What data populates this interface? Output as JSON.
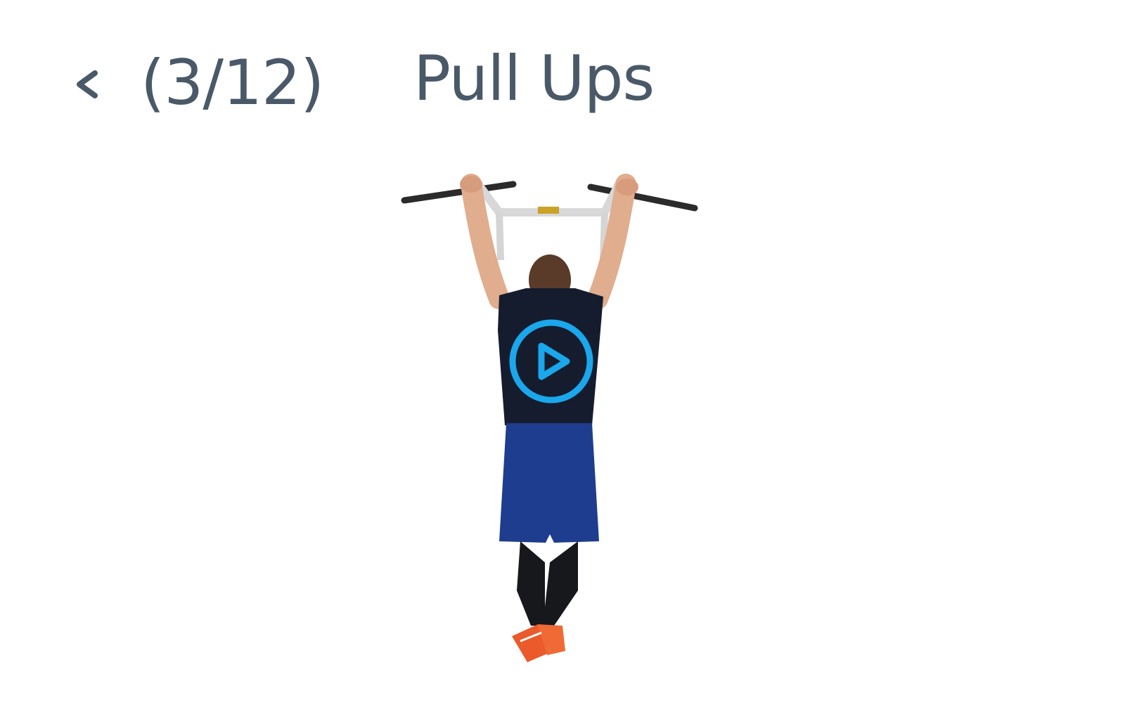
{
  "header": {
    "counter": "(3/12)",
    "title": "Pull Ups"
  },
  "icons": {
    "back": "chevron-left-icon",
    "play": "play-circle-icon"
  },
  "colors": {
    "text": "#4a5968",
    "accent": "#1aa7ec"
  }
}
